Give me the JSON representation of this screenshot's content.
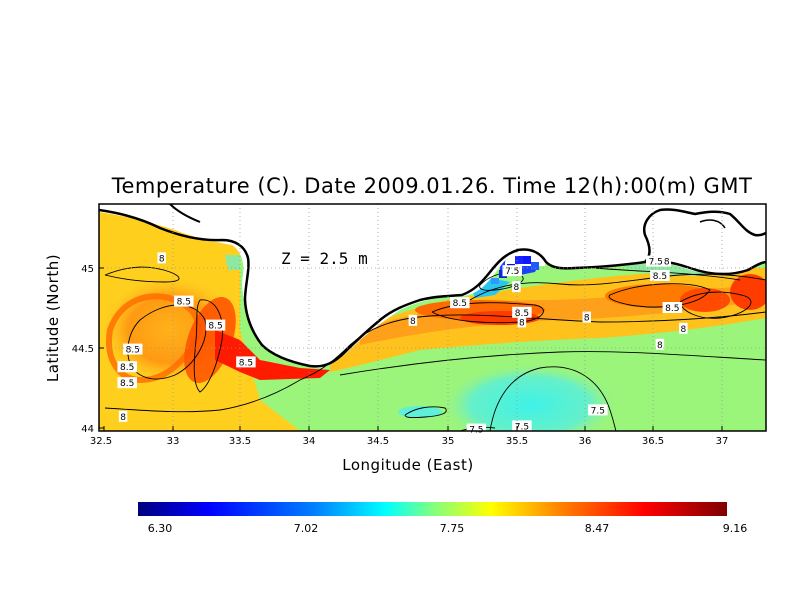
{
  "title": "Temperature (C). Date 2009.01.26. Time 12(h):00(m) GMT",
  "depth_label": "Z = 2.5 m",
  "xlabel": "Longitude (East)",
  "ylabel": "Latitude (North)",
  "x_ticks": [
    "32.5",
    "33",
    "33.5",
    "34",
    "34.5",
    "35",
    "35.5",
    "36",
    "36.5",
    "37"
  ],
  "y_ticks": [
    "44",
    "44.5",
    "45"
  ],
  "colorbar": {
    "labels": [
      "6.30",
      "7.02",
      "7.75",
      "8.47",
      "9.16"
    ],
    "min": 6.3,
    "max": 9.16,
    "colors": [
      "#00007f",
      "#0000ff",
      "#0080ff",
      "#00ffff",
      "#80ff80",
      "#ffff00",
      "#ff8000",
      "#ff0000",
      "#7f0000"
    ]
  },
  "colors": {
    "land": "#ffffff",
    "coast": "#000000",
    "grid": "#a0a0a0",
    "warm": "#ff6a00",
    "mild": "#ffd21a",
    "cool": "#7ff3a0",
    "cold": "#1f6fff"
  },
  "contour_labels": [
    {
      "text": "8",
      "lon": 32.94,
      "lat": 45.06
    },
    {
      "text": "8.5",
      "lon": 33.1,
      "lat": 44.79
    },
    {
      "text": "8.5",
      "lon": 33.33,
      "lat": 44.64
    },
    {
      "text": "8.5",
      "lon": 32.73,
      "lat": 44.49
    },
    {
      "text": "8.5",
      "lon": 32.69,
      "lat": 44.38
    },
    {
      "text": "8.5",
      "lon": 32.69,
      "lat": 44.28
    },
    {
      "text": "8",
      "lon": 32.66,
      "lat": 44.07
    },
    {
      "text": "8.5",
      "lon": 33.55,
      "lat": 44.41
    },
    {
      "text": "8",
      "lon": 34.76,
      "lat": 44.67
    },
    {
      "text": "7.5",
      "lon": 35.48,
      "lat": 44.98
    },
    {
      "text": "8",
      "lon": 35.51,
      "lat": 44.88
    },
    {
      "text": "8.5",
      "lon": 35.1,
      "lat": 44.78
    },
    {
      "text": "8.5",
      "lon": 35.55,
      "lat": 44.72
    },
    {
      "text": "8",
      "lon": 35.55,
      "lat": 44.66
    },
    {
      "text": "8",
      "lon": 36.02,
      "lat": 44.69
    },
    {
      "text": "7.5",
      "lon": 36.52,
      "lat": 45.04
    },
    {
      "text": "8",
      "lon": 36.6,
      "lat": 45.04
    },
    {
      "text": "8.5",
      "lon": 36.55,
      "lat": 44.95
    },
    {
      "text": "8.5",
      "lon": 36.64,
      "lat": 44.75
    },
    {
      "text": "8",
      "lon": 36.72,
      "lat": 44.62
    },
    {
      "text": "8",
      "lon": 36.55,
      "lat": 44.52
    },
    {
      "text": "7.5",
      "lon": 36.1,
      "lat": 44.11
    },
    {
      "text": "7.5",
      "lon": 35.55,
      "lat": 44.01
    },
    {
      "text": "7.5",
      "lon": 35.22,
      "lat": 43.99
    }
  ]
}
